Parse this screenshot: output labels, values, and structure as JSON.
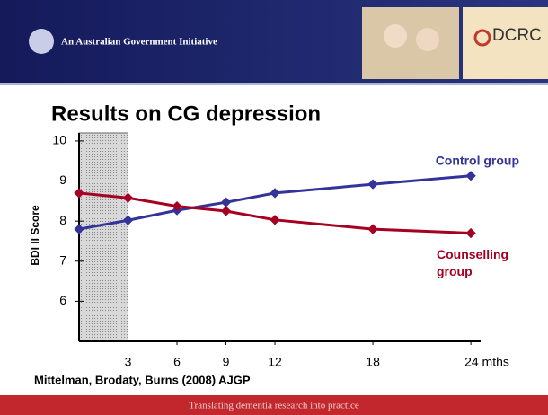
{
  "header": {
    "tagline": "An Australian Government Initiative",
    "logo": "DCRC"
  },
  "chart_data": {
    "type": "line",
    "title": "Results on CG depression",
    "y_label": "BDI II Score",
    "x": [
      0,
      3,
      6,
      9,
      12,
      18,
      24
    ],
    "series": [
      {
        "name": "Control group",
        "color": "#333399",
        "values": [
          7.8,
          8.02,
          8.27,
          8.47,
          8.7,
          8.92,
          9.13
        ]
      },
      {
        "name": "Counselling group",
        "color": "#a50021",
        "values": [
          8.7,
          8.58,
          8.37,
          8.25,
          8.03,
          7.8,
          7.7
        ]
      }
    ],
    "xlim": [
      0,
      24.6
    ],
    "ylim": [
      5,
      10.2
    ],
    "xticks": [
      3,
      6,
      9,
      12,
      18,
      {
        "value": 24,
        "label": "24 mths"
      }
    ],
    "yticks": [
      6,
      7,
      8,
      9,
      10
    ],
    "shaded_x": [
      0,
      3
    ],
    "source": "Mittelman, Brodaty, Burns (2008) AJGP"
  },
  "footer": "Translating dementia research into practice"
}
